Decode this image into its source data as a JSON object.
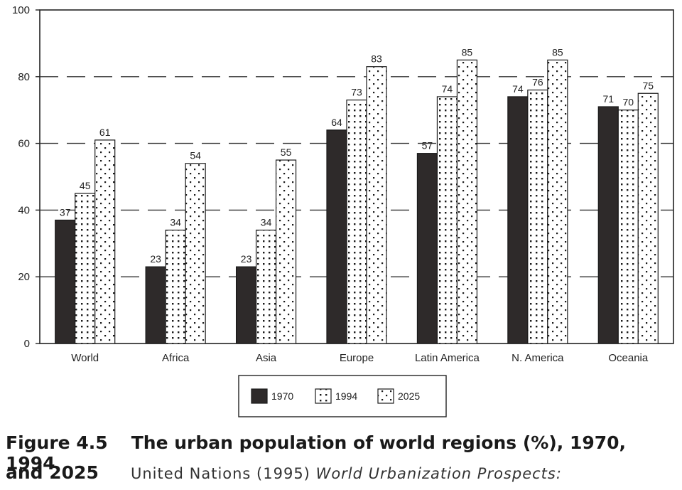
{
  "chart_data": {
    "type": "bar",
    "categories": [
      "World",
      "Africa",
      "Asia",
      "Europe",
      "Latin America",
      "N. America",
      "Oceania"
    ],
    "series": [
      {
        "name": "1970",
        "values": [
          37,
          23,
          23,
          64,
          57,
          74,
          71
        ],
        "pattern": "solid",
        "color": "#2e2a2a"
      },
      {
        "name": "1994",
        "values": [
          45,
          34,
          34,
          73,
          74,
          76,
          70
        ],
        "pattern": "dense-dots",
        "color": "#1a1a1a"
      },
      {
        "name": "2025",
        "values": [
          61,
          54,
          55,
          83,
          85,
          85,
          75
        ],
        "pattern": "sparse-dots",
        "color": "#1a1a1a"
      }
    ],
    "ylim": [
      0,
      100
    ],
    "yticks": [
      0,
      20,
      40,
      60,
      80,
      100
    ],
    "grid": "dashed at 20, 40, 60, 80",
    "legend_position": "bottom-center",
    "title": "The urban population of world regions (%), 1970, 1994 and 2025"
  },
  "caption": {
    "label_line1": "Figure 4.5",
    "title_line1": "The urban population of world regions (%), 1970, 1994",
    "label_line2": "and 2025",
    "source_regular": "United Nations (1995) ",
    "source_italic": "World Urbanization Prospects:"
  }
}
